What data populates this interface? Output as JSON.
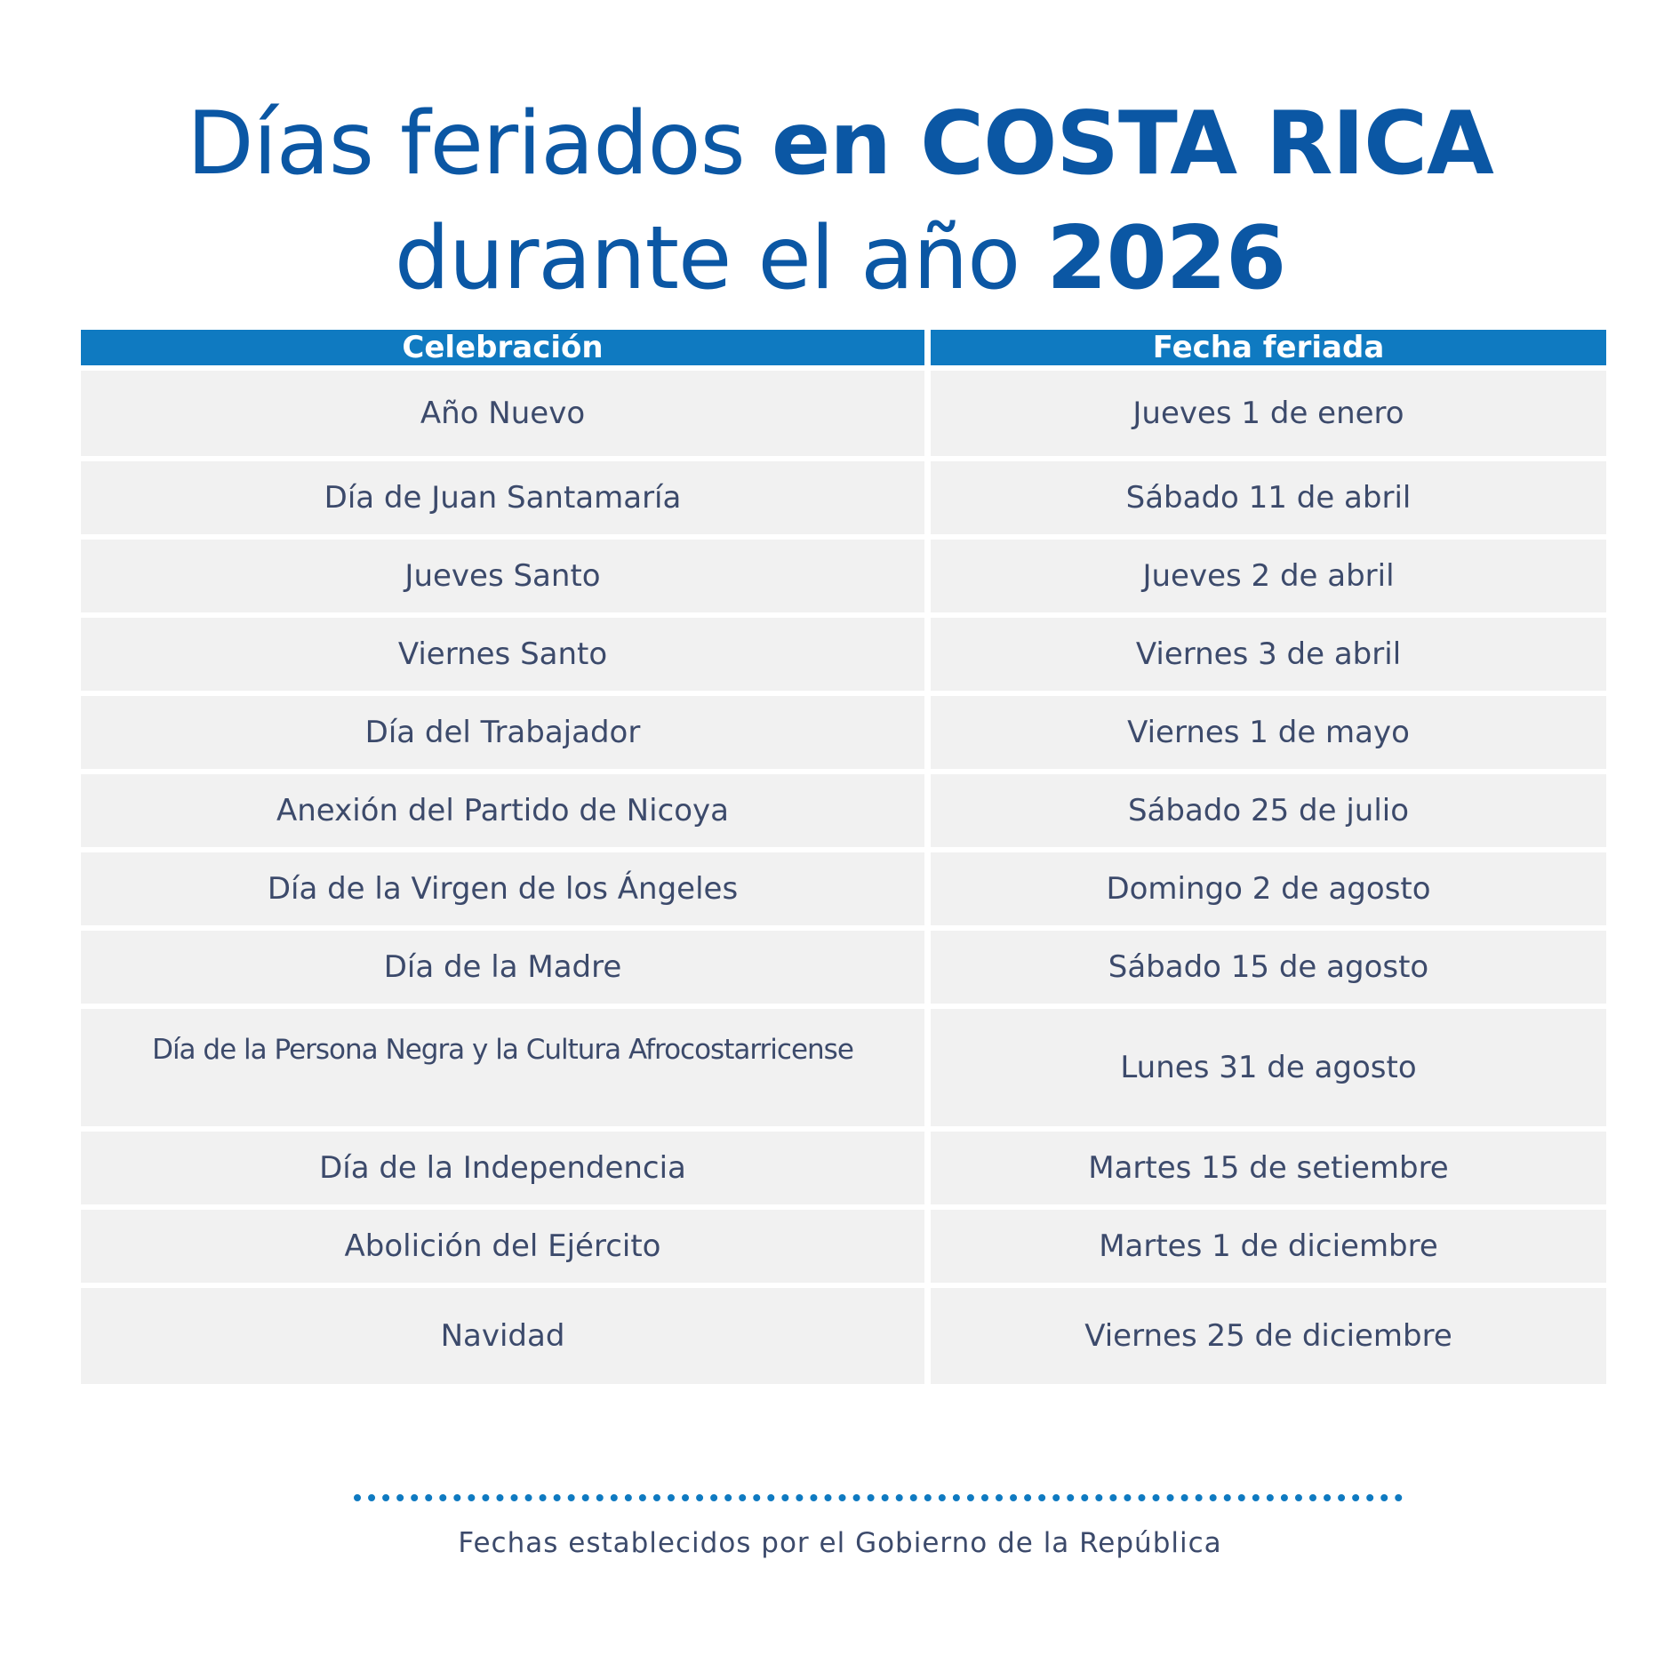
{
  "title": {
    "line1_light": "Días feriados ",
    "line1_bold": "en COSTA RICA",
    "line2_light": "durante el año ",
    "line2_bold": "2026"
  },
  "table": {
    "headers": [
      "Celebración",
      "Fecha feriada"
    ],
    "rows": [
      {
        "celebration": "Año Nuevo",
        "date": "Jueves 1 de enero"
      },
      {
        "celebration": "Día de Juan Santamaría",
        "date": "Sábado 11 de abril"
      },
      {
        "celebration": "Jueves Santo",
        "date": "Jueves 2  de abril"
      },
      {
        "celebration": "Viernes Santo",
        "date": "Viernes 3 de abril"
      },
      {
        "celebration": "Día del Trabajador",
        "date": "Viernes 1 de mayo"
      },
      {
        "celebration": "Anexión del Partido de Nicoya",
        "date": "Sábado 25 de julio"
      },
      {
        "celebration": "Día de la Virgen de los Ángeles",
        "date": "Domingo 2 de agosto"
      },
      {
        "celebration": "Día  de la Madre",
        "date": "Sábado 15 de agosto"
      },
      {
        "celebration": "Día de la Persona Negra y la Cultura Afrocostarricense",
        "date": "Lunes 31 de agosto"
      },
      {
        "celebration": "Día de la Independencia",
        "date": "Martes 15 de setiembre"
      },
      {
        "celebration": "Abolición del Ejército",
        "date": "Martes 1 de diciembre"
      },
      {
        "celebration": "Navidad",
        "date": "Viernes 25 de diciembre"
      }
    ]
  },
  "footnote": "Fechas establecidos por el Gobierno de la República",
  "colors": {
    "title": "#0b57a4",
    "header_bg": "#0f7ac1",
    "row_bg": "#f1f1f1",
    "text": "#3c4a6b"
  }
}
